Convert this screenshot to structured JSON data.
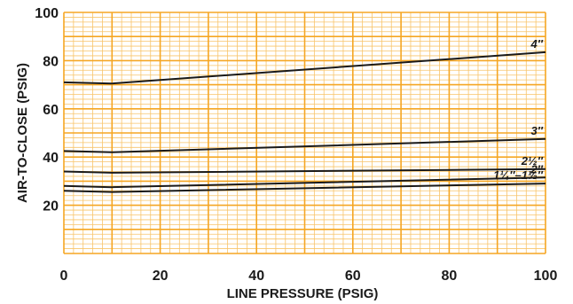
{
  "chart_data": {
    "type": "line",
    "title": "",
    "xlabel": "LINE PRESSURE (PSIG)",
    "ylabel": "AIR-TO-CLOSE (PSIG)",
    "xlim": [
      0,
      100
    ],
    "ylim": [
      0,
      100
    ],
    "x_ticks": [
      "0",
      "20",
      "40",
      "60",
      "80",
      "100"
    ],
    "y_ticks": [
      "20",
      "40",
      "60",
      "80",
      "100"
    ],
    "grid": true,
    "colors": {
      "grid_major": "#f5a623",
      "grid_minor": "#f8c46a",
      "background": "#ffffff",
      "line": "#1a1a1a"
    },
    "series": [
      {
        "name": "4″",
        "x": [
          0,
          10,
          100
        ],
        "y": [
          71,
          70.5,
          83.5
        ]
      },
      {
        "name": "3″",
        "x": [
          0,
          10,
          100
        ],
        "y": [
          42.5,
          42,
          47.5
        ]
      },
      {
        "name": "2½″",
        "x": [
          0,
          10,
          100
        ],
        "y": [
          34,
          33.5,
          35
        ]
      },
      {
        "name": "2″",
        "x": [
          0,
          10,
          100
        ],
        "y": [
          28,
          27.5,
          31.5
        ]
      },
      {
        "name": "1¼″–1½″",
        "x": [
          0,
          10,
          100
        ],
        "y": [
          26,
          25.5,
          29
        ]
      }
    ]
  }
}
